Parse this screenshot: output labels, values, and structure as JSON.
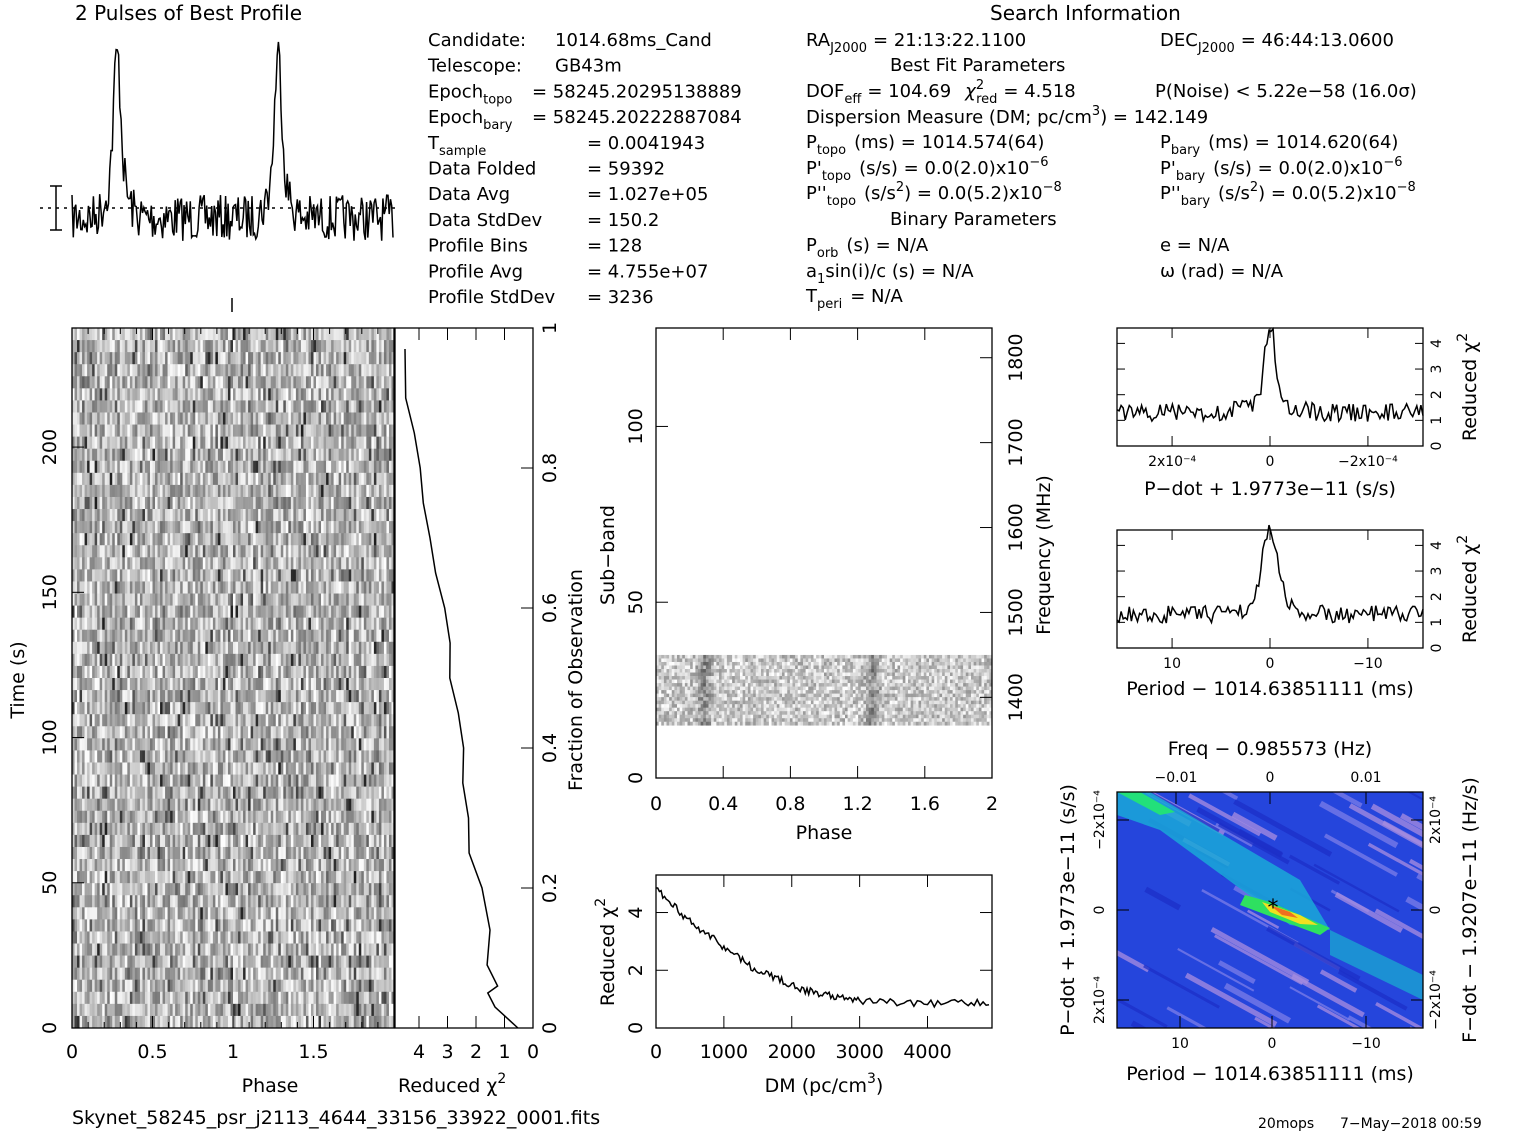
{
  "title_profile": "2 Pulses of Best Profile",
  "title_search": "Search Information",
  "info_left": [
    {
      "label": "Candidate:",
      "value": "1014.68ms_Cand"
    },
    {
      "label": "Telescope:",
      "value": "GB43m"
    },
    {
      "label": "Epoch",
      "sub": "topo",
      "value": "= 58245.20295138889"
    },
    {
      "label": "Epoch",
      "sub": "bary",
      "value": "= 58245.20222887084"
    },
    {
      "label": "T",
      "sub": "sample",
      "value": "=   0.0041943"
    },
    {
      "label": "Data Folded",
      "value": "=   59392"
    },
    {
      "label": "Data Avg",
      "value": "=   1.027e+05"
    },
    {
      "label": "Data StdDev",
      "value": "=   150.2"
    },
    {
      "label": "Profile Bins",
      "value": "=   128"
    },
    {
      "label": "Profile Avg",
      "value": "=   4.755e+07"
    },
    {
      "label": "Profile StdDev",
      "value": "=   3236"
    }
  ],
  "info_right": {
    "ra": "RA",
    "ra_sub": "J2000",
    "ra_value": "= 21:13:22.1100",
    "dec": "DEC",
    "dec_sub": "J2000",
    "dec_value": "= 46:44:13.0600",
    "best_fit_header": "Best Fit Parameters",
    "dof": "DOF",
    "dof_sub": "eff",
    "dof_value": "= 104.69",
    "chi": "χ",
    "chi_sup": "2",
    "chi_sub": "red",
    "chi_value": "= 4.518",
    "pnoise": "P(Noise) < 5.22e−58   (16.0σ)",
    "dm_line": "Dispersion Measure (DM; pc/cm",
    "dm_sup": "3",
    "dm_value": ") = 142.149",
    "ptopo": "P",
    "ptopo_sub": "topo",
    "ptopo_value": "(ms)  =   1014.574(64)",
    "pbary": "P",
    "pbary_sub": "bary",
    "pbary_value": "(ms)  =   1014.620(64)",
    "pdtopo": "P'",
    "pdtopo_sub": "topo",
    "pdtopo_value": "(s/s) = 0.0(2.0)x10",
    "pdtopo_exp": "−6",
    "pdbary": "P'",
    "pdbary_sub": "bary",
    "pdbary_value": "(s/s) = 0.0(2.0)x10",
    "pdbary_exp": "−6",
    "pddtopo": "P''",
    "pddtopo_sub": "topo",
    "pddtopo_value": "(s/s",
    "pddtopo_sup": "2",
    "pddtopo_value2": ") = 0.0(5.2)x10",
    "pddtopo_exp": "−8",
    "pddbary": "P''",
    "pddbary_sub": "bary",
    "pddbary_value": "(s/s",
    "pddbary_sup": "2",
    "pddbary_value2": ") = 0.0(5.2)x10",
    "pddbary_exp": "−8",
    "binary_header": "Binary Parameters",
    "porb": "P",
    "porb_sub": "orb",
    "porb_value": "(s) = N/A",
    "e_value": "e = N/A",
    "a1": "a",
    "a1_sub": "1",
    "a1_value": "sin(i)/c (s) = N/A",
    "omega_value": "ω (rad) = N/A",
    "tperi": "T",
    "tperi_sub": "peri",
    "tperi_value": "= N/A"
  },
  "footer_file": "Skynet_58245_psr_j2113_4644_33156_33922_0001.fits",
  "footer_user": "20mops",
  "footer_date": "7−May−2018 00:59",
  "chart_data": [
    {
      "type": "line",
      "name": "profile",
      "title": "2 Pulses of Best Profile",
      "x": "phase 0-2",
      "peaks_at_phase": [
        0.28,
        1.28
      ]
    },
    {
      "type": "heatmap",
      "name": "time-phase",
      "xlabel": "Phase",
      "ylabel": "Time (s)",
      "xlim": [
        0,
        2
      ],
      "ylim": [
        0,
        240
      ],
      "x_ticks": [
        "0",
        "0.5",
        "1",
        "1.5"
      ],
      "y_ticks": [
        "0",
        "50",
        "100",
        "150",
        "200"
      ]
    },
    {
      "type": "line",
      "name": "reduced-chi2-vs-time",
      "xlabel": "Reduced χ",
      "xlabel_sup": "2",
      "ylabel": "Fraction of Observation",
      "x_ticks": [
        "4",
        "3",
        "2",
        "1",
        "0"
      ],
      "y_ticks": [
        "0",
        "0.2",
        "0.4",
        "0.6",
        "0.8",
        "1"
      ],
      "x": [
        0.5,
        1.3,
        1.6,
        1.2,
        1.6,
        1.5,
        1.8,
        2.2,
        2.3,
        2.5,
        2.4,
        2.6,
        2.9,
        2.9,
        3.1,
        3.4,
        3.6,
        3.9,
        4.0,
        4.2,
        4.5,
        4.5
      ],
      "y": [
        0,
        0.03,
        0.05,
        0.06,
        0.09,
        0.14,
        0.2,
        0.25,
        0.3,
        0.35,
        0.4,
        0.45,
        0.5,
        0.55,
        0.6,
        0.65,
        0.7,
        0.75,
        0.8,
        0.85,
        0.9,
        0.97
      ]
    },
    {
      "type": "heatmap",
      "name": "subband-phase",
      "xlabel": "Phase",
      "ylabel": "Sub−band",
      "y2label": "Frequency (MHz)",
      "x_ticks": [
        "0",
        "0.4",
        "0.8",
        "1.2",
        "1.6",
        "2"
      ],
      "y_ticks": [
        "0",
        "50",
        "100"
      ],
      "y2_ticks": [
        "1400",
        "1500",
        "1600",
        "1700",
        "1800"
      ],
      "band_rows": [
        15,
        35
      ]
    },
    {
      "type": "line",
      "name": "dm-curve",
      "xlabel": "DM (pc/cm",
      "xlabel_sup": "3",
      "xlabel_end": ")",
      "ylabel": "Reduced χ",
      "ylabel_sup": "2",
      "x_ticks": [
        "0",
        "1000",
        "2000",
        "3000",
        "4000"
      ],
      "y_ticks": [
        "0",
        "2",
        "4"
      ],
      "x": [
        0,
        200,
        400,
        600,
        800,
        1000,
        1200,
        1400,
        1600,
        1800,
        2000,
        2200,
        2400,
        2600,
        2800,
        3000,
        3400,
        3800,
        4200,
        4600,
        4950
      ],
      "y": [
        4.8,
        4.4,
        3.9,
        3.5,
        3.2,
        2.8,
        2.5,
        2.1,
        1.9,
        1.7,
        1.5,
        1.3,
        1.2,
        1.1,
        1.0,
        0.95,
        0.9,
        0.85,
        0.85,
        0.9,
        0.9
      ]
    },
    {
      "type": "line",
      "name": "pdot-curve",
      "xlabel": "P−dot + 1.9773e−11 (s/s)",
      "ylabel": "Reduced χ",
      "ylabel_sup": "2",
      "x_ticks": [
        "2x10⁻⁴",
        "0",
        "−2x10⁻⁴"
      ],
      "y_ticks": [
        "0",
        "1",
        "2",
        "3",
        "4"
      ]
    },
    {
      "type": "line",
      "name": "period-curve",
      "xlabel": "Period − 1014.63851111 (ms)",
      "ylabel": "Reduced χ",
      "ylabel_sup": "2",
      "x_ticks": [
        "10",
        "0",
        "−10"
      ],
      "y_ticks": [
        "0",
        "1",
        "2",
        "3",
        "4"
      ]
    },
    {
      "type": "heatmap",
      "name": "p-pdot",
      "title": "Freq − 0.985573 (Hz)",
      "xlabel": "Period − 1014.63851111 (ms)",
      "ylabel": "P−dot + 1.9773e−11 (s/s)",
      "y2label": "F−dot − 1.9207e−11 (Hz/s)",
      "top_ticks": [
        "−0.01",
        "0",
        "0.01"
      ],
      "x_ticks": [
        "10",
        "0",
        "−10"
      ],
      "y_ticks": [
        "−2x10⁻⁴",
        "0",
        "2x10⁻⁴"
      ],
      "y2_ticks": [
        "2x10⁻⁴",
        "0",
        "−2x10⁻⁴"
      ]
    }
  ]
}
